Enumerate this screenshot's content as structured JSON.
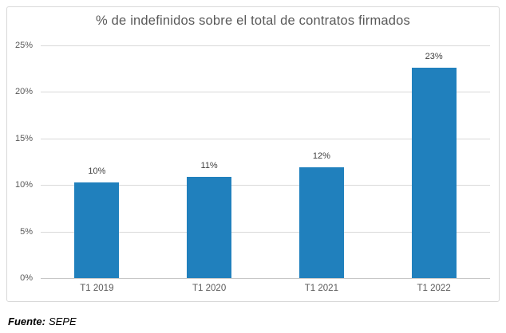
{
  "chart_data": {
    "type": "bar",
    "title": "% de indefinidos sobre el total de contratos firmados",
    "categories": [
      "T1 2019",
      "T1 2020",
      "T1 2021",
      "T1 2022"
    ],
    "values": [
      10.3,
      10.9,
      11.9,
      22.6
    ],
    "bar_labels": [
      "10%",
      "11%",
      "12%",
      "23%"
    ],
    "xlabel": "",
    "ylabel": "",
    "ylim": [
      0,
      25
    ],
    "yticks": [
      {
        "value": 25,
        "label": "25%"
      },
      {
        "value": 20,
        "label": "20%"
      },
      {
        "value": 15,
        "label": "15%"
      },
      {
        "value": 10,
        "label": "10%"
      },
      {
        "value": 5,
        "label": "5%"
      },
      {
        "value": 0,
        "label": "0%"
      }
    ],
    "grid": true,
    "legend": false,
    "bar_color": "#2080bd"
  },
  "footer": {
    "source_label": "Fuente:",
    "source_value": "SEPE"
  }
}
